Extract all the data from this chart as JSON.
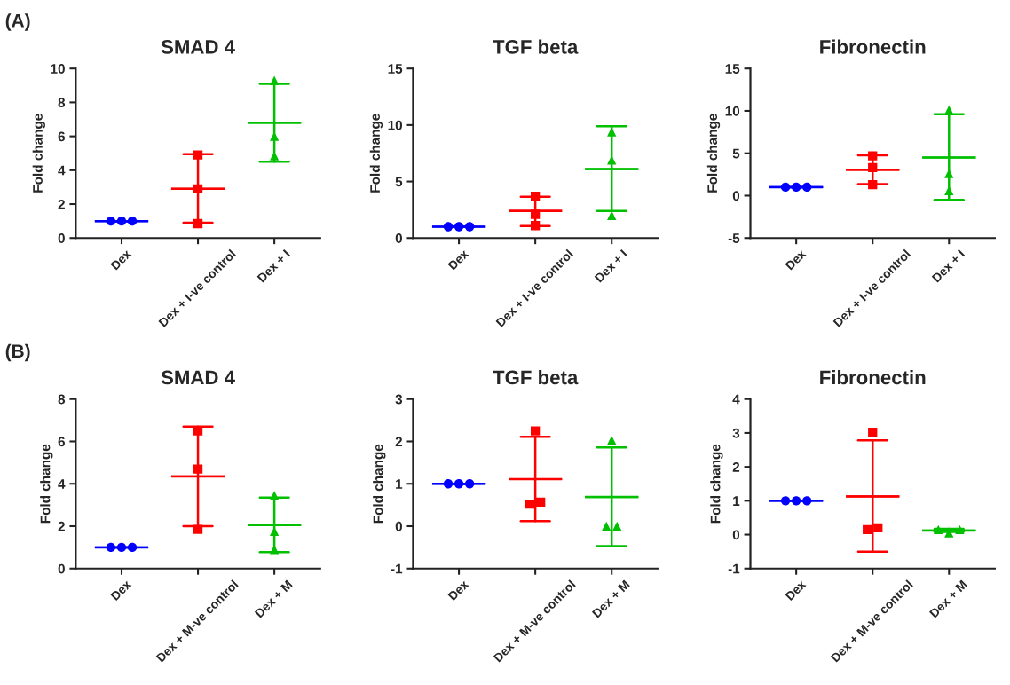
{
  "chart_data": [
    {
      "type": "scatter",
      "title": "SMAD 4",
      "ylabel": "Fold change",
      "annotations": [
        "(A)"
      ],
      "categories": [
        "Dex",
        "Dex + I-ve control",
        "Dex + I"
      ],
      "ylim": [
        0,
        10
      ],
      "yticks": [
        0,
        2,
        4,
        6,
        8,
        10
      ],
      "grid": false,
      "legend": false,
      "series": [
        {
          "type": "scatter",
          "x": [
            "Dex",
            "Dex",
            "Dex"
          ],
          "values": [
            1,
            1,
            1
          ],
          "color": "#0000ff",
          "marker": "circle"
        },
        {
          "type": "scatter",
          "x": [
            "Dex + I-ve control",
            "Dex + I-ve control",
            "Dex + I-ve control"
          ],
          "values": [
            4.9,
            2.9,
            0.85
          ],
          "color": "#ff0000",
          "marker": "square"
        },
        {
          "type": "scatter",
          "x": [
            "Dex + I",
            "Dex + I",
            "Dex + I"
          ],
          "values": [
            9.3,
            6.0,
            4.85
          ],
          "color": "#00c000",
          "marker": "triangle"
        },
        {
          "type": "box",
          "colors": [
            "#0000ff",
            "#ff0000",
            "#00c000"
          ],
          "boxes": [
            {
              "low": 1,
              "q1": 1,
              "median": 1,
              "q3": 1,
              "high": 1
            },
            {
              "low": 0.9,
              "q1": 2.9,
              "median": 2.9,
              "q3": 2.9,
              "high": 4.95
            },
            {
              "low": 4.5,
              "q1": 6.8,
              "median": 6.8,
              "q3": 6.8,
              "high": 9.1
            }
          ]
        }
      ]
    },
    {
      "type": "scatter",
      "title": "TGF beta",
      "ylabel": "Fold change",
      "categories": [
        "Dex",
        "Dex + I-ve control",
        "Dex + I"
      ],
      "ylim": [
        0,
        15
      ],
      "yticks": [
        0,
        5,
        10,
        15
      ],
      "grid": false,
      "legend": false,
      "series": [
        {
          "type": "scatter",
          "x": [
            "Dex",
            "Dex",
            "Dex"
          ],
          "values": [
            1,
            1,
            1
          ],
          "color": "#0000ff",
          "marker": "circle"
        },
        {
          "type": "scatter",
          "x": [
            "Dex + I-ve control",
            "Dex + I-ve control",
            "Dex + I-ve control"
          ],
          "values": [
            3.7,
            2.1,
            1.1
          ],
          "color": "#ff0000",
          "marker": "square"
        },
        {
          "type": "scatter",
          "x": [
            "Dex + I",
            "Dex + I",
            "Dex + I"
          ],
          "values": [
            9.4,
            6.9,
            2.0
          ],
          "color": "#00c000",
          "marker": "triangle"
        },
        {
          "type": "box",
          "colors": [
            "#0000ff",
            "#ff0000",
            "#00c000"
          ],
          "boxes": [
            {
              "low": 1,
              "q1": 1,
              "median": 1,
              "q3": 1,
              "high": 1
            },
            {
              "low": 1.05,
              "q1": 2.4,
              "median": 2.4,
              "q3": 2.4,
              "high": 3.65
            },
            {
              "low": 2.4,
              "q1": 6.1,
              "median": 6.1,
              "q3": 6.1,
              "high": 9.9
            }
          ]
        }
      ]
    },
    {
      "type": "scatter",
      "title": "Fibronectin",
      "ylabel": "Fold change",
      "categories": [
        "Dex",
        "Dex + I-ve control",
        "Dex + I"
      ],
      "ylim": [
        -5,
        15
      ],
      "yticks": [
        -5,
        0,
        5,
        10,
        15
      ],
      "grid": false,
      "legend": false,
      "series": [
        {
          "type": "scatter",
          "x": [
            "Dex",
            "Dex",
            "Dex"
          ],
          "values": [
            1,
            1,
            1
          ],
          "color": "#0000ff",
          "marker": "circle"
        },
        {
          "type": "scatter",
          "x": [
            "Dex + I-ve control",
            "Dex + I-ve control",
            "Dex + I-ve control"
          ],
          "values": [
            4.7,
            3.3,
            1.3
          ],
          "color": "#ff0000",
          "marker": "square"
        },
        {
          "type": "scatter",
          "x": [
            "Dex + I",
            "Dex + I",
            "Dex + I"
          ],
          "values": [
            10.1,
            2.6,
            0.6
          ],
          "color": "#00c000",
          "marker": "triangle"
        },
        {
          "type": "box",
          "colors": [
            "#0000ff",
            "#ff0000",
            "#00c000"
          ],
          "boxes": [
            {
              "low": 1,
              "q1": 1,
              "median": 1,
              "q3": 1,
              "high": 1
            },
            {
              "low": 1.35,
              "q1": 3.05,
              "median": 3.05,
              "q3": 3.05,
              "high": 4.75
            },
            {
              "low": -0.5,
              "q1": 4.5,
              "median": 4.5,
              "q3": 4.5,
              "high": 9.6
            }
          ]
        }
      ]
    },
    {
      "type": "scatter",
      "title": "SMAD 4",
      "ylabel": "Fold change",
      "annotations": [
        "(B)"
      ],
      "categories": [
        "Dex",
        "Dex + M-ve control",
        "Dex + M"
      ],
      "ylim": [
        0,
        8
      ],
      "yticks": [
        0,
        2,
        4,
        6,
        8
      ],
      "grid": false,
      "legend": false,
      "series": [
        {
          "type": "scatter",
          "x": [
            "Dex",
            "Dex",
            "Dex"
          ],
          "values": [
            1,
            1,
            1
          ],
          "color": "#0000ff",
          "marker": "circle"
        },
        {
          "type": "scatter",
          "x": [
            "Dex + M-ve control",
            "Dex + M-ve control",
            "Dex + M-ve control"
          ],
          "values": [
            6.5,
            4.7,
            1.85
          ],
          "color": "#ff0000",
          "marker": "square"
        },
        {
          "type": "scatter",
          "x": [
            "Dex + M",
            "Dex + M",
            "Dex + M"
          ],
          "values": [
            3.45,
            1.75,
            0.9
          ],
          "color": "#00c000",
          "marker": "triangle"
        },
        {
          "type": "box",
          "colors": [
            "#0000ff",
            "#ff0000",
            "#00c000"
          ],
          "boxes": [
            {
              "low": 1,
              "q1": 1,
              "median": 1,
              "q3": 1,
              "high": 1
            },
            {
              "low": 2.0,
              "q1": 4.35,
              "median": 4.35,
              "q3": 4.35,
              "high": 6.7
            },
            {
              "low": 0.78,
              "q1": 2.05,
              "median": 2.05,
              "q3": 2.05,
              "high": 3.35
            }
          ]
        }
      ]
    },
    {
      "type": "scatter",
      "title": "TGF beta",
      "ylabel": "Fold change",
      "categories": [
        "Dex",
        "Dex + M-ve control",
        "Dex + M"
      ],
      "ylim": [
        -1,
        3
      ],
      "yticks": [
        -1,
        0,
        1,
        2,
        3
      ],
      "grid": false,
      "legend": false,
      "series": [
        {
          "type": "scatter",
          "x": [
            "Dex",
            "Dex",
            "Dex"
          ],
          "values": [
            1,
            1,
            1
          ],
          "color": "#0000ff",
          "marker": "circle"
        },
        {
          "type": "scatter",
          "x": [
            "Dex + M-ve control",
            "Dex + M-ve control",
            "Dex + M-ve control"
          ],
          "values": [
            2.25,
            0.52,
            0.57
          ],
          "color": "#ff0000",
          "marker": "square"
        },
        {
          "type": "scatter",
          "x": [
            "Dex + M",
            "Dex + M",
            "Dex + M"
          ],
          "values": [
            2.03,
            0.0,
            0.0
          ],
          "color": "#00c000",
          "marker": "triangle"
        },
        {
          "type": "box",
          "colors": [
            "#0000ff",
            "#ff0000",
            "#00c000"
          ],
          "boxes": [
            {
              "low": 1,
              "q1": 1,
              "median": 1,
              "q3": 1,
              "high": 1
            },
            {
              "low": 0.12,
              "q1": 1.11,
              "median": 1.11,
              "q3": 1.11,
              "high": 2.11
            },
            {
              "low": -0.47,
              "q1": 0.69,
              "median": 0.69,
              "q3": 0.69,
              "high": 1.86
            }
          ]
        }
      ]
    },
    {
      "type": "scatter",
      "title": "Fibronectin",
      "ylabel": "Fold change",
      "categories": [
        "Dex",
        "Dex + M-ve control",
        "Dex + M"
      ],
      "ylim": [
        -1,
        4
      ],
      "yticks": [
        -1,
        0,
        1,
        2,
        3,
        4
      ],
      "grid": false,
      "legend": false,
      "series": [
        {
          "type": "scatter",
          "x": [
            "Dex",
            "Dex",
            "Dex"
          ],
          "values": [
            1,
            1,
            1
          ],
          "color": "#0000ff",
          "marker": "circle"
        },
        {
          "type": "scatter",
          "x": [
            "Dex + M-ve control",
            "Dex + M-ve control",
            "Dex + M-ve control"
          ],
          "values": [
            3.02,
            0.15,
            0.2
          ],
          "color": "#ff0000",
          "marker": "square"
        },
        {
          "type": "scatter",
          "x": [
            "Dex + M",
            "Dex + M",
            "Dex + M"
          ],
          "values": [
            0.15,
            0.05,
            0.15
          ],
          "color": "#00c000",
          "marker": "triangle"
        },
        {
          "type": "box",
          "colors": [
            "#0000ff",
            "#ff0000",
            "#00c000"
          ],
          "boxes": [
            {
              "low": 1,
              "q1": 1,
              "median": 1,
              "q3": 1,
              "high": 1
            },
            {
              "low": -0.5,
              "q1": 1.13,
              "median": 1.13,
              "q3": 1.13,
              "high": 2.78
            },
            {
              "low": 0.08,
              "q1": 0.12,
              "median": 0.12,
              "q3": 0.12,
              "high": 0.17
            }
          ]
        }
      ]
    }
  ]
}
